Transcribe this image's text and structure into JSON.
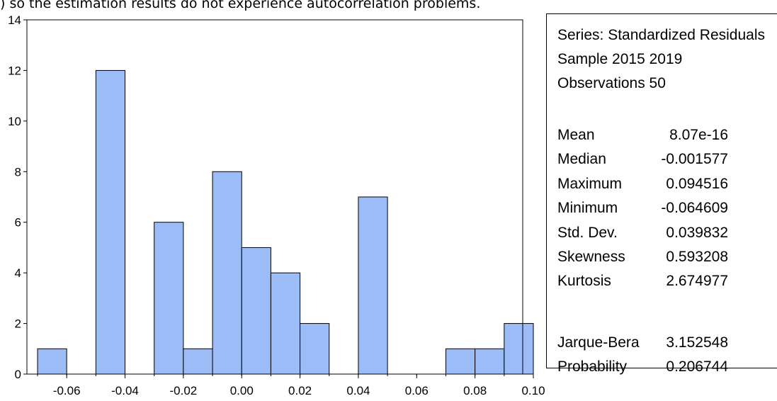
{
  "caption": ") so the estimation results do not experience autocorrelation problems.",
  "chart_data": {
    "type": "bar",
    "bin_edges": [
      -0.07,
      -0.06,
      -0.05,
      -0.04,
      -0.03,
      -0.02,
      -0.01,
      0.0,
      0.01,
      0.02,
      0.03,
      0.04,
      0.05,
      0.06,
      0.07,
      0.08,
      0.09,
      0.1
    ],
    "values": [
      1,
      0,
      12,
      0,
      6,
      1,
      8,
      5,
      4,
      2,
      0,
      7,
      0,
      0,
      1,
      1,
      2
    ],
    "xlim": [
      -0.07,
      0.1
    ],
    "ylim": [
      0,
      14
    ],
    "x_ticks": [
      "-0.06",
      "-0.04",
      "-0.02",
      "0.00",
      "0.02",
      "0.04",
      "0.06",
      "0.08",
      "0.10"
    ],
    "y_ticks": [
      "0",
      "2",
      "4",
      "6",
      "8",
      "10",
      "12",
      "14"
    ],
    "bar_color": "#9cbcf8",
    "bar_edge_color": "#000000",
    "title": "",
    "xlabel": "",
    "ylabel": ""
  },
  "stats": {
    "series": "Series: Standardized Residuals",
    "sample": "Sample 2015 2019",
    "observations": "Observations 50",
    "rows": [
      {
        "label": "Mean",
        "value": "8.07e-16"
      },
      {
        "label": "Median",
        "value": "-0.001577"
      },
      {
        "label": "Maximum",
        "value": "0.094516"
      },
      {
        "label": "Minimum",
        "value": "-0.064609"
      },
      {
        "label": "Std. Dev.",
        "value": "0.039832"
      },
      {
        "label": "Skewness",
        "value": "0.593208"
      },
      {
        "label": "Kurtosis",
        "value": "2.674977"
      }
    ],
    "jb_rows": [
      {
        "label": "Jarque-Bera",
        "value": "3.152548"
      },
      {
        "label": "Probability",
        "value": "0.206744"
      }
    ]
  }
}
